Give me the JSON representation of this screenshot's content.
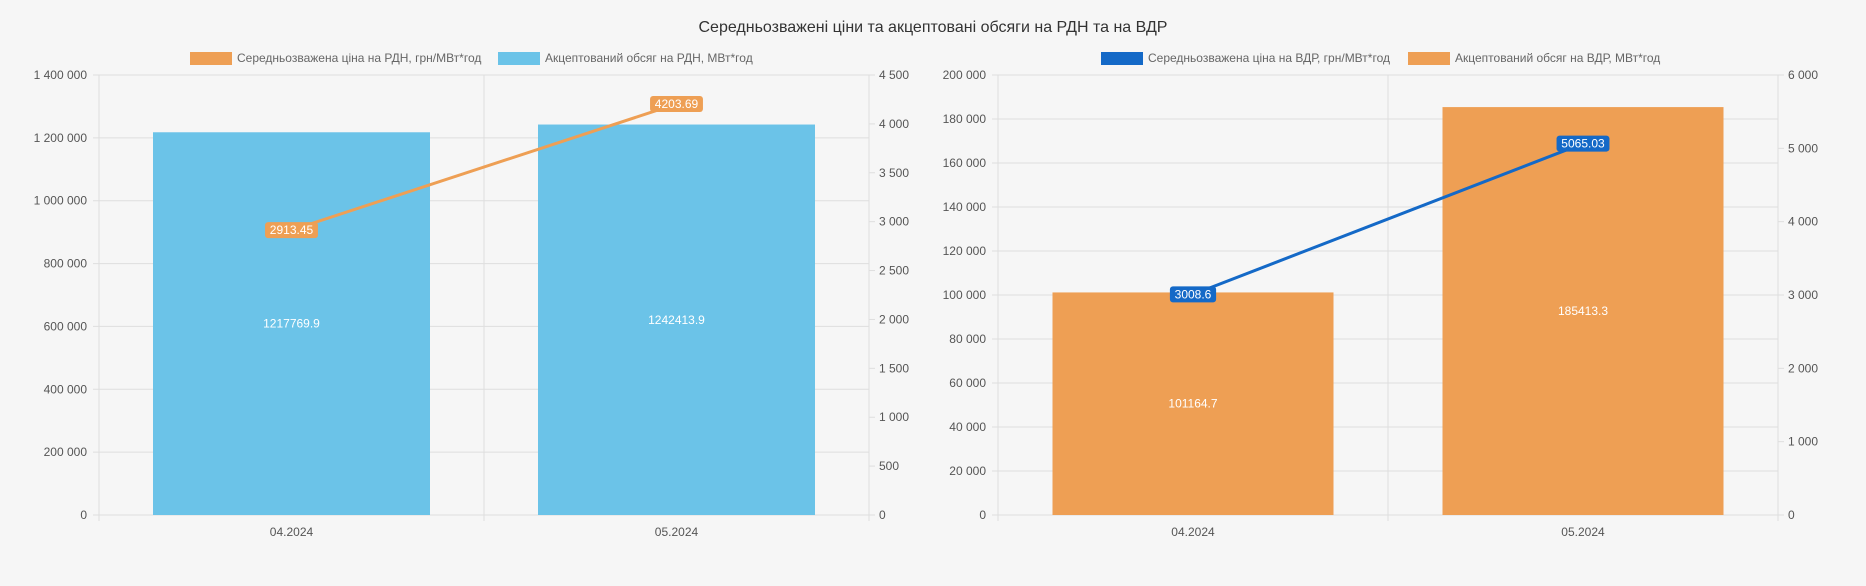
{
  "title": "Середньозважені ціни та акцептовані обсяги на РДН та на ВДР",
  "chart_data": [
    {
      "type": "bar",
      "categories": [
        "04.2024",
        "05.2024"
      ],
      "series": [
        {
          "name": "Середньозважена ціна на РДН, грн/МВт*год",
          "kind": "line",
          "axis": "right",
          "color": "#ee9f54",
          "values": [
            2913.45,
            4203.69
          ],
          "labels": [
            "2913.45",
            "4203.69"
          ]
        },
        {
          "name": "Акцептований обсяг на РДН, МВт*год",
          "kind": "bar",
          "axis": "left",
          "color": "#6bc3e8",
          "values": [
            1217769.9,
            1242413.9
          ],
          "labels": [
            "1217769.9",
            "1242413.9"
          ]
        }
      ],
      "y_left": {
        "min": 0,
        "max": 1400000,
        "ticks": [
          "0",
          "200 000",
          "400 000",
          "600 000",
          "800 000",
          "1 000 000",
          "1 200 000",
          "1 400 000"
        ]
      },
      "y_right": {
        "min": 0,
        "max": 4500,
        "ticks": [
          "0",
          "500",
          "1 000",
          "1 500",
          "2 000",
          "2 500",
          "3 000",
          "3 500",
          "4 000",
          "4 500"
        ]
      },
      "legend": "top",
      "grid": true
    },
    {
      "type": "bar",
      "categories": [
        "04.2024",
        "05.2024"
      ],
      "series": [
        {
          "name": "Середньозважена ціна на ВДР, грн/МВт*год",
          "kind": "line",
          "axis": "right",
          "color": "#1469c7",
          "values": [
            3008.6,
            5065.03
          ],
          "labels": [
            "3008.6",
            "5065.03"
          ]
        },
        {
          "name": "Акцептований обсяг на ВДР, МВт*год",
          "kind": "bar",
          "axis": "left",
          "color": "#ee9f54",
          "values": [
            101164.7,
            185413.3
          ],
          "labels": [
            "101164.7",
            "185413.3"
          ]
        }
      ],
      "y_left": {
        "min": 0,
        "max": 200000,
        "ticks": [
          "0",
          "20 000",
          "40 000",
          "60 000",
          "80 000",
          "100 000",
          "120 000",
          "140 000",
          "160 000",
          "180 000",
          "200 000"
        ]
      },
      "y_right": {
        "min": 0,
        "max": 6000,
        "ticks": [
          "0",
          "1 000",
          "2 000",
          "3 000",
          "4 000",
          "5 000",
          "6 000"
        ]
      },
      "legend": "top",
      "grid": true
    }
  ]
}
